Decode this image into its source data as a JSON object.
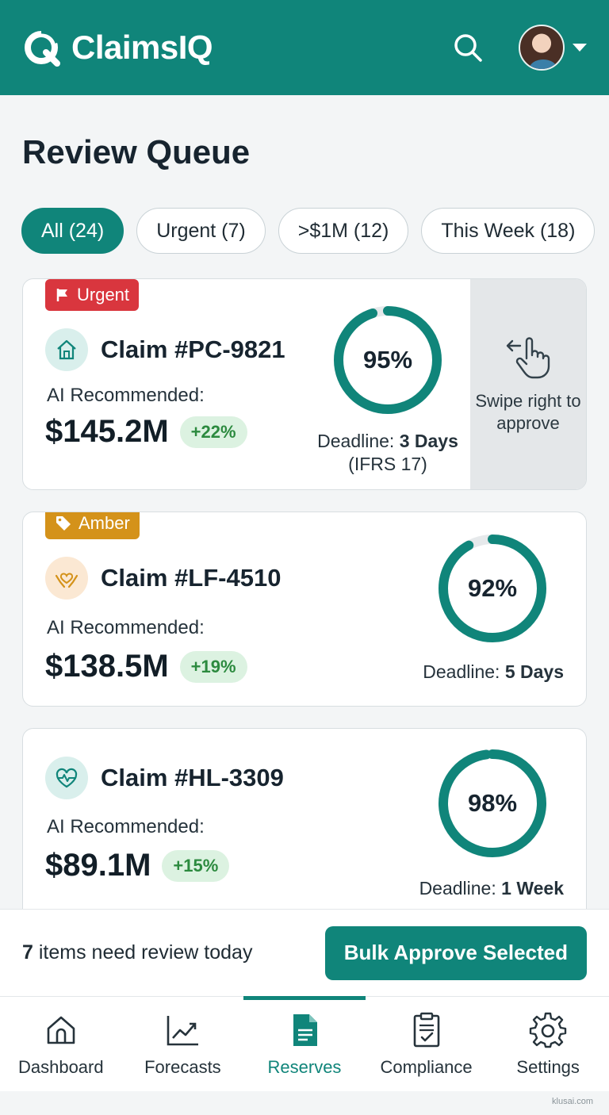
{
  "app": {
    "name": "ClaimsIQ"
  },
  "page": {
    "title": "Review Queue"
  },
  "filters": [
    {
      "label": "All (24)",
      "active": true
    },
    {
      "label": "Urgent (7)",
      "active": false
    },
    {
      "label": ">$1M (12)",
      "active": false
    },
    {
      "label": "This Week (18)",
      "active": false
    }
  ],
  "claims": [
    {
      "tag": "Urgent",
      "tag_icon": "flag-icon",
      "icon": "house-icon",
      "title": "Claim #PC-9821",
      "ai_label": "AI Recommended:",
      "amount": "$145.2M",
      "delta": "+22%",
      "confidence": 95,
      "confidence_label": "95%",
      "deadline_prefix": "Deadline:",
      "deadline_value": "3 Days",
      "deadline_note": "(IFRS 17)",
      "swipe_hint": "Swipe right to approve"
    },
    {
      "tag": "Amber",
      "tag_icon": "tag-icon",
      "icon": "hands-heart-icon",
      "title": "Claim #LF-4510",
      "ai_label": "AI Recommended:",
      "amount": "$138.5M",
      "delta": "+19%",
      "confidence": 92,
      "confidence_label": "92%",
      "deadline_prefix": "Deadline:",
      "deadline_value": "5 Days"
    },
    {
      "icon": "heart-pulse-icon",
      "title": "Claim #HL-3309",
      "ai_label": "AI Recommended:",
      "amount": "$89.1M",
      "delta": "+15%",
      "confidence": 98,
      "confidence_label": "98%",
      "deadline_prefix": "Deadline:",
      "deadline_value": "1 Week"
    }
  ],
  "action_bar": {
    "count": "7",
    "count_text": "items need review today",
    "bulk_label": "Bulk Approve Selected"
  },
  "tabs": [
    {
      "label": "Dashboard",
      "icon": "home-icon",
      "active": false
    },
    {
      "label": "Forecasts",
      "icon": "trend-chart-icon",
      "active": false
    },
    {
      "label": "Reserves",
      "icon": "document-icon",
      "active": true
    },
    {
      "label": "Compliance",
      "icon": "clipboard-check-icon",
      "active": false
    },
    {
      "label": "Settings",
      "icon": "gear-icon",
      "active": false
    }
  ],
  "colors": {
    "primary": "#10857a",
    "urgent": "#d9363e",
    "amber": "#d4921a",
    "delta_bg": "#dcf2e1",
    "delta_text": "#2c8a3f"
  },
  "watermark": "klusai.com"
}
